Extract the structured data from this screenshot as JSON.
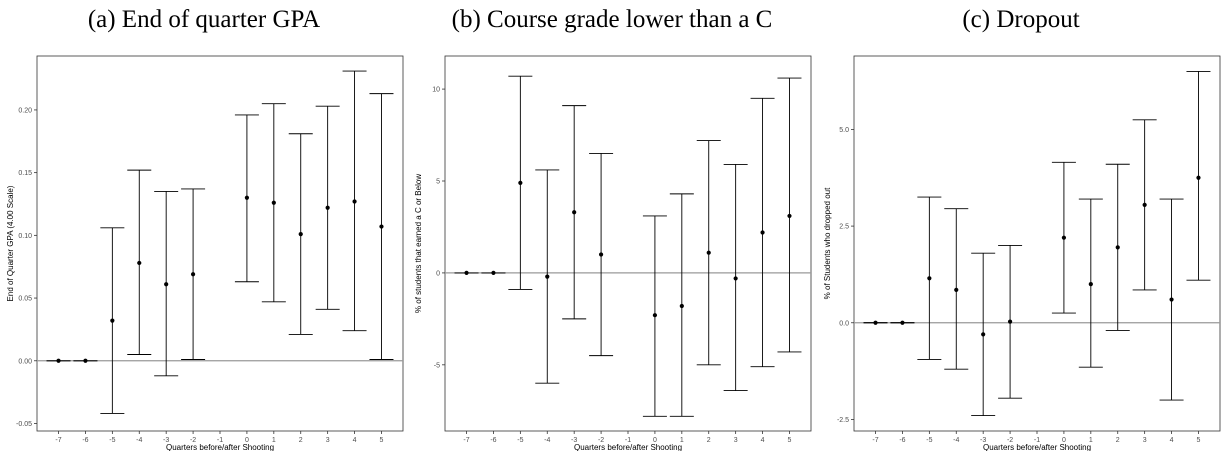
{
  "chart_data": [
    {
      "type": "scatter",
      "title": "(a) End of quarter GPA",
      "xlabel": "Quarters before/after Shooting",
      "ylabel": "End of Quarter GPA (4.00 Scale)",
      "x_ticks": [
        -7,
        -6,
        -5,
        -4,
        -3,
        -2,
        -1,
        0,
        1,
        2,
        3,
        4,
        5
      ],
      "y_ticks": [
        -0.05,
        0.0,
        0.05,
        0.1,
        0.15,
        0.2
      ],
      "y_tick_labels": [
        "-0.05",
        "0.00",
        "0.05",
        "0.10",
        "0.15",
        "0.20"
      ],
      "xlim": [
        -7.8,
        5.8
      ],
      "ylim": [
        -0.056,
        0.243
      ],
      "reference_line_y": 0,
      "grid": false,
      "points": [
        {
          "x": -7,
          "y": 0.0,
          "lo": 0.0,
          "hi": 0.0
        },
        {
          "x": -6,
          "y": 0.0,
          "lo": 0.0,
          "hi": 0.0
        },
        {
          "x": -5,
          "y": 0.032,
          "lo": -0.042,
          "hi": 0.106
        },
        {
          "x": -4,
          "y": 0.078,
          "lo": 0.005,
          "hi": 0.152
        },
        {
          "x": -3,
          "y": 0.061,
          "lo": -0.012,
          "hi": 0.135
        },
        {
          "x": -2,
          "y": 0.069,
          "lo": 0.001,
          "hi": 0.137
        },
        {
          "x": 0,
          "y": 0.13,
          "lo": 0.063,
          "hi": 0.196
        },
        {
          "x": 1,
          "y": 0.126,
          "lo": 0.047,
          "hi": 0.205
        },
        {
          "x": 2,
          "y": 0.101,
          "lo": 0.021,
          "hi": 0.181
        },
        {
          "x": 3,
          "y": 0.122,
          "lo": 0.041,
          "hi": 0.203
        },
        {
          "x": 4,
          "y": 0.127,
          "lo": 0.024,
          "hi": 0.231
        },
        {
          "x": 5,
          "y": 0.107,
          "lo": 0.001,
          "hi": 0.213
        }
      ]
    },
    {
      "type": "scatter",
      "title": "(b) Course grade lower than a C",
      "xlabel": "Quarters before/after Shooting",
      "ylabel": "% of students that earned a C or Below",
      "x_ticks": [
        -7,
        -6,
        -5,
        -4,
        -3,
        -2,
        -1,
        0,
        1,
        2,
        3,
        4,
        5
      ],
      "y_ticks": [
        -5,
        0,
        5,
        10
      ],
      "y_tick_labels": [
        "-5",
        "0",
        "5",
        "10"
      ],
      "xlim": [
        -7.8,
        5.8
      ],
      "ylim": [
        -8.6,
        11.8
      ],
      "reference_line_y": 0,
      "grid": false,
      "points": [
        {
          "x": -7,
          "y": 0.0,
          "lo": 0.0,
          "hi": 0.0
        },
        {
          "x": -6,
          "y": 0.0,
          "lo": 0.0,
          "hi": 0.0
        },
        {
          "x": -5,
          "y": 4.9,
          "lo": -0.9,
          "hi": 10.7
        },
        {
          "x": -4,
          "y": -0.2,
          "lo": -6.0,
          "hi": 5.6
        },
        {
          "x": -3,
          "y": 3.3,
          "lo": -2.5,
          "hi": 9.1
        },
        {
          "x": -2,
          "y": 1.0,
          "lo": -4.5,
          "hi": 6.5
        },
        {
          "x": 0,
          "y": -2.3,
          "lo": -7.8,
          "hi": 3.1
        },
        {
          "x": 1,
          "y": -1.8,
          "lo": -7.8,
          "hi": 4.3
        },
        {
          "x": 2,
          "y": 1.1,
          "lo": -5.0,
          "hi": 7.2
        },
        {
          "x": 3,
          "y": -0.3,
          "lo": -6.4,
          "hi": 5.9
        },
        {
          "x": 4,
          "y": 2.2,
          "lo": -5.1,
          "hi": 9.5
        },
        {
          "x": 5,
          "y": 3.1,
          "lo": -4.3,
          "hi": 10.6
        }
      ]
    },
    {
      "type": "scatter",
      "title": "(c) Dropout",
      "xlabel": "Quarters before/after Shooting",
      "ylabel": "% of Students who dropped out",
      "x_ticks": [
        -7,
        -6,
        -5,
        -4,
        -3,
        -2,
        -1,
        0,
        1,
        2,
        3,
        4,
        5
      ],
      "y_ticks": [
        -2.5,
        0.0,
        2.5,
        5.0
      ],
      "y_tick_labels": [
        "-2.5",
        "0.0",
        "2.5",
        "5.0"
      ],
      "xlim": [
        -7.8,
        5.8
      ],
      "ylim": [
        -2.8,
        6.9
      ],
      "reference_line_y": 0,
      "grid": false,
      "points": [
        {
          "x": -7,
          "y": 0.0,
          "lo": 0.0,
          "hi": 0.0
        },
        {
          "x": -6,
          "y": 0.0,
          "lo": 0.0,
          "hi": 0.0
        },
        {
          "x": -5,
          "y": 1.15,
          "lo": -0.95,
          "hi": 3.25
        },
        {
          "x": -4,
          "y": 0.85,
          "lo": -1.2,
          "hi": 2.95
        },
        {
          "x": -3,
          "y": -0.3,
          "lo": -2.4,
          "hi": 1.8
        },
        {
          "x": -2,
          "y": 0.03,
          "lo": -1.95,
          "hi": 2.0
        },
        {
          "x": 0,
          "y": 2.2,
          "lo": 0.25,
          "hi": 4.15
        },
        {
          "x": 1,
          "y": 1.0,
          "lo": -1.15,
          "hi": 3.2
        },
        {
          "x": 2,
          "y": 1.95,
          "lo": -0.2,
          "hi": 4.1
        },
        {
          "x": 3,
          "y": 3.05,
          "lo": 0.85,
          "hi": 5.25
        },
        {
          "x": 4,
          "y": 0.6,
          "lo": -2.0,
          "hi": 3.2
        },
        {
          "x": 5,
          "y": 3.75,
          "lo": 1.1,
          "hi": 6.5
        }
      ]
    }
  ]
}
